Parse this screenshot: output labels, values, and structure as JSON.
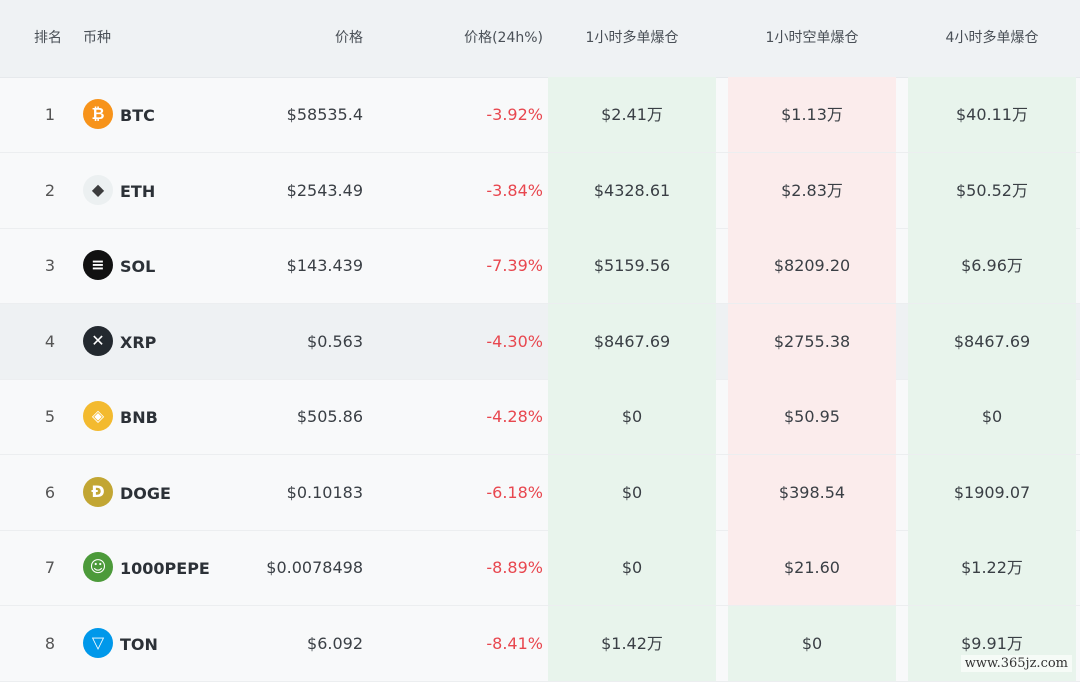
{
  "header": {
    "rank": "排名",
    "coin": "币种",
    "price": "价格",
    "change": "价格(24h%)",
    "long_1h": "1小时多单爆仓",
    "short_1h": "1小时空单爆仓",
    "long_4h": "4小时多单爆仓"
  },
  "rows": [
    {
      "rank": "1",
      "symbol": "BTC",
      "icon": "bitcoin-icon",
      "icon_color": "#f7931a",
      "icon_glyph": "₿",
      "price": "$58535.4",
      "change": "-3.92%",
      "long_1h": "$2.41万",
      "short_1h": "$1.13万",
      "long_4h": "$40.11万",
      "long_1h_bg": "green",
      "short_1h_bg": "red",
      "long_4h_bg": "green"
    },
    {
      "rank": "2",
      "symbol": "ETH",
      "icon": "ethereum-icon",
      "icon_color": "#ecf0f1",
      "icon_glyph": "◆",
      "price": "$2543.49",
      "change": "-3.84%",
      "long_1h": "$4328.61",
      "short_1h": "$2.83万",
      "long_4h": "$50.52万",
      "long_1h_bg": "green",
      "short_1h_bg": "red",
      "long_4h_bg": "green"
    },
    {
      "rank": "3",
      "symbol": "SOL",
      "icon": "solana-icon",
      "icon_color": "#111111",
      "icon_glyph": "≡",
      "price": "$143.439",
      "change": "-7.39%",
      "long_1h": "$5159.56",
      "short_1h": "$8209.20",
      "long_4h": "$6.96万",
      "long_1h_bg": "green",
      "short_1h_bg": "red",
      "long_4h_bg": "green"
    },
    {
      "rank": "4",
      "symbol": "XRP",
      "icon": "xrp-icon",
      "icon_color": "#23292f",
      "icon_glyph": "✕",
      "price": "$0.563",
      "change": "-4.30%",
      "long_1h": "$8467.69",
      "short_1h": "$2755.38",
      "long_4h": "$8467.69",
      "long_1h_bg": "green",
      "short_1h_bg": "red",
      "long_4h_bg": "green"
    },
    {
      "rank": "5",
      "symbol": "BNB",
      "icon": "bnb-icon",
      "icon_color": "#f3ba2f",
      "icon_glyph": "◈",
      "price": "$505.86",
      "change": "-4.28%",
      "long_1h": "$0",
      "short_1h": "$50.95",
      "long_4h": "$0",
      "long_1h_bg": "green",
      "short_1h_bg": "red",
      "long_4h_bg": "green"
    },
    {
      "rank": "6",
      "symbol": "DOGE",
      "icon": "doge-icon",
      "icon_color": "#c2a633",
      "icon_glyph": "Ð",
      "price": "$0.10183",
      "change": "-6.18%",
      "long_1h": "$0",
      "short_1h": "$398.54",
      "long_4h": "$1909.07",
      "long_1h_bg": "green",
      "short_1h_bg": "red",
      "long_4h_bg": "green"
    },
    {
      "rank": "7",
      "symbol": "1000PEPE",
      "icon": "pepe-icon",
      "icon_color": "#4c9a3a",
      "icon_glyph": "☺",
      "price": "$0.0078498",
      "change": "-8.89%",
      "long_1h": "$0",
      "short_1h": "$21.60",
      "long_4h": "$1.22万",
      "long_1h_bg": "green",
      "short_1h_bg": "red",
      "long_4h_bg": "green"
    },
    {
      "rank": "8",
      "symbol": "TON",
      "icon": "toncoin-icon",
      "icon_color": "#0098ea",
      "icon_glyph": "▽",
      "price": "$6.092",
      "change": "-8.41%",
      "long_1h": "$1.42万",
      "short_1h": "$0",
      "long_4h": "$9.91万",
      "long_1h_bg": "green",
      "short_1h_bg": "green",
      "long_4h_bg": "green"
    }
  ],
  "watermark": "www.365jz.com",
  "colors": {
    "negative": "#e8474f",
    "green_bg": "#e8f4ec",
    "red_bg": "#fbecec",
    "header_bg": "#eff2f4"
  }
}
